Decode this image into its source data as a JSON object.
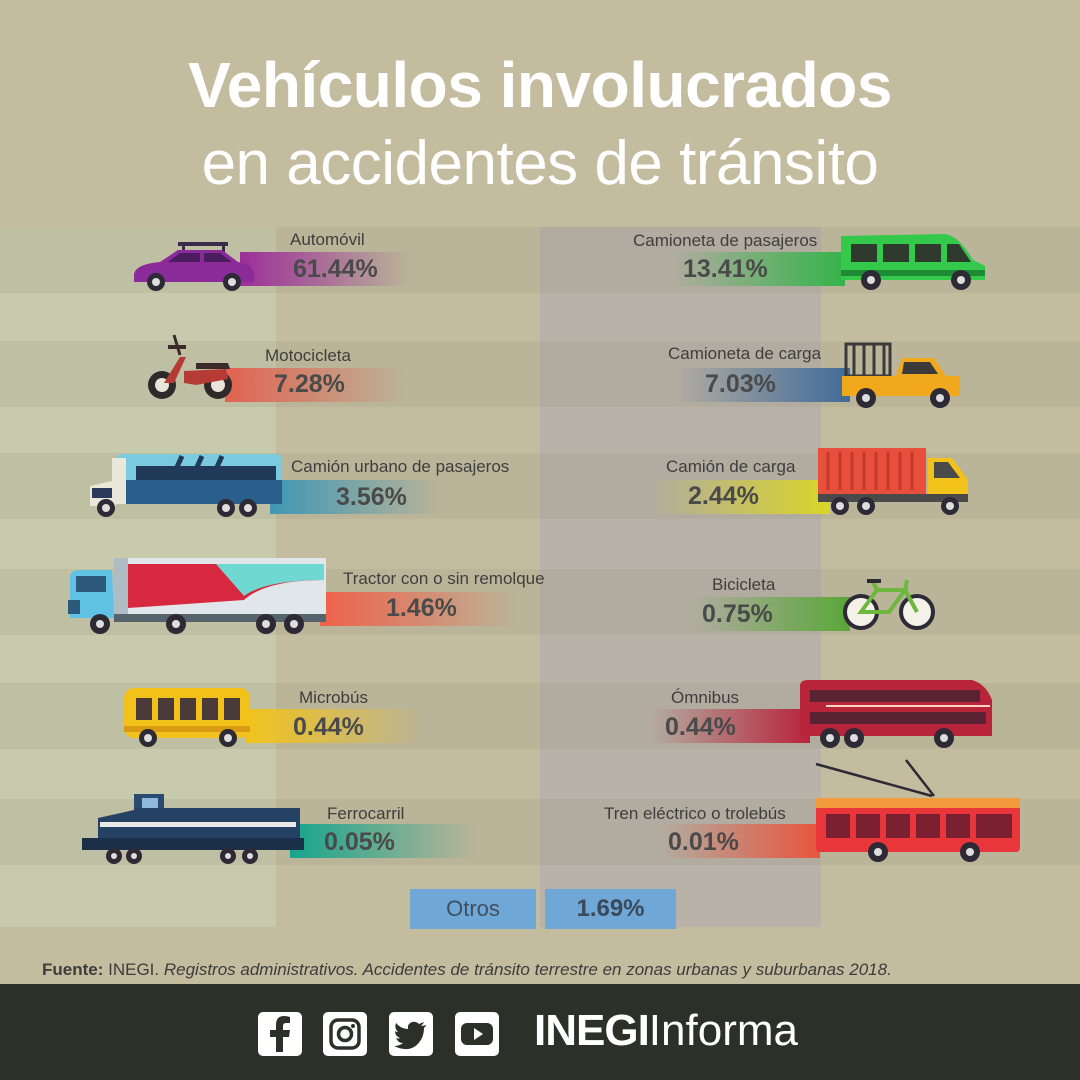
{
  "title": {
    "line1": "Vehículos involucrados",
    "line2": "en accidentes de tránsito"
  },
  "items": [
    {
      "label": "Automóvil",
      "value": "61.44%",
      "color": "#9b2d98",
      "icon": "car-icon"
    },
    {
      "label": "Motocicleta",
      "value": "7.28%",
      "color": "#e2614f",
      "icon": "motorcycle-icon"
    },
    {
      "label": "Camión urbano de pasajeros",
      "value": "3.56%",
      "color": "#3f97b5",
      "icon": "city-bus-icon"
    },
    {
      "label": "Tractor con o sin remolque",
      "value": "1.46%",
      "color": "#f0614a",
      "icon": "tractor-trailer-icon"
    },
    {
      "label": "Microbús",
      "value": "0.44%",
      "color": "#f2c21a",
      "icon": "microbus-icon"
    },
    {
      "label": "Ferrocarril",
      "value": "0.05%",
      "color": "#15a58d",
      "icon": "train-icon"
    },
    {
      "label": "Camioneta de pasajeros",
      "value": "13.41%",
      "color": "#34b34a",
      "icon": "passenger-van-icon"
    },
    {
      "label": "Camioneta de carga",
      "value": "7.03%",
      "color": "#3f6a9a",
      "icon": "pickup-truck-icon"
    },
    {
      "label": "Camión de carga",
      "value": "2.44%",
      "color": "#d9d528",
      "icon": "cargo-truck-icon"
    },
    {
      "label": "Bicicleta",
      "value": "0.75%",
      "color": "#59a63a",
      "icon": "bicycle-icon"
    },
    {
      "label": "Ómnibus",
      "value": "0.44%",
      "color": "#b8243a",
      "icon": "double-decker-bus-icon"
    },
    {
      "label": "Tren eléctrico o trolebús",
      "value": "0.01%",
      "color": "#e8553d",
      "icon": "trolleybus-icon"
    }
  ],
  "otros": {
    "label": "Otros",
    "value": "1.69%"
  },
  "source": {
    "prefix": "Fuente:",
    "org": "INEGI.",
    "text": "Registros administrativos. Accidentes de tránsito terrestre en zonas  urbanas y suburbanas 2018."
  },
  "footer": {
    "icons": [
      "facebook-icon",
      "instagram-icon",
      "twitter-icon",
      "youtube-icon"
    ],
    "brand_bold": "INEGI",
    "brand_regular": "Informa"
  }
}
